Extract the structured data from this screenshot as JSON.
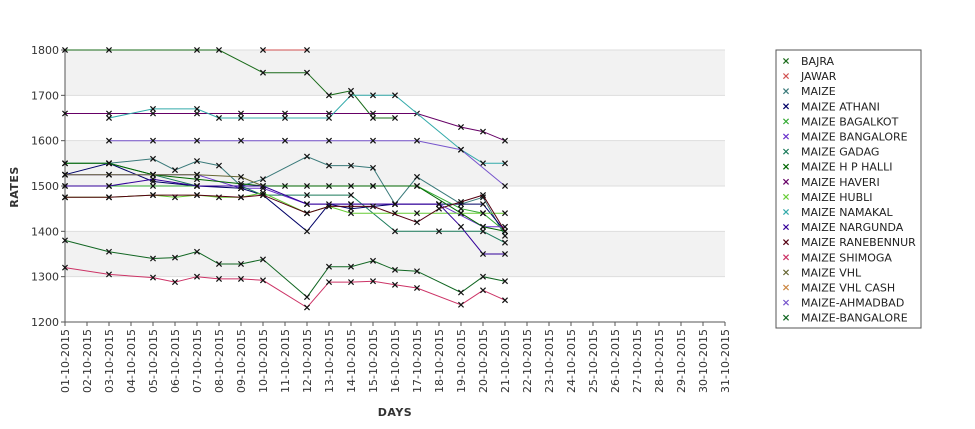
{
  "chart_data": {
    "type": "line",
    "xlabel": "DAYS",
    "ylabel": "RATES",
    "ylim": [
      1200,
      1800
    ],
    "yticks": [
      "1200",
      "1300",
      "1400",
      "1500",
      "1600",
      "1700",
      "1800"
    ],
    "grid": "horizontal alternating bands",
    "legend_position": "right",
    "categories": [
      "01-10-2015",
      "02-10-2015",
      "03-10-2015",
      "04-10-2015",
      "05-10-2015",
      "06-10-2015",
      "07-10-2015",
      "08-10-2015",
      "09-10-2015",
      "10-10-2015",
      "11-10-2015",
      "12-10-2015",
      "13-10-2015",
      "14-10-2015",
      "15-10-2015",
      "16-10-2015",
      "17-10-2015",
      "18-10-2015",
      "19-10-2015",
      "20-10-2015",
      "21-10-2015",
      "22-10-2015",
      "23-10-2015",
      "24-10-2015",
      "25-10-2015",
      "26-10-2015",
      "27-10-2015",
      "28-10-2015",
      "29-10-2015",
      "30-10-2015",
      "31-10-2015"
    ],
    "series": [
      {
        "name": "BAJRA",
        "color": "#1a6b1a",
        "points": [
          [
            0,
            1800
          ],
          [
            2,
            1800
          ],
          [
            6,
            1800
          ],
          [
            7,
            1800
          ],
          [
            9,
            1750
          ],
          [
            11,
            1750
          ],
          [
            12,
            1700
          ],
          [
            13,
            1710
          ],
          [
            14,
            1650
          ],
          [
            15,
            1650
          ]
        ]
      },
      {
        "name": "JAWAR",
        "color": "#d05050",
        "points": [
          [
            9,
            1800
          ],
          [
            11,
            1800
          ]
        ]
      },
      {
        "name": "MAIZE",
        "color": "#3a7a7a",
        "points": [
          [
            2,
            1550
          ],
          [
            4,
            1560
          ],
          [
            5,
            1535
          ],
          [
            6,
            1555
          ],
          [
            7,
            1545
          ],
          [
            8,
            1500
          ],
          [
            9,
            1515
          ],
          [
            11,
            1565
          ],
          [
            12,
            1545
          ],
          [
            13,
            1545
          ],
          [
            14,
            1540
          ],
          [
            15,
            1460
          ],
          [
            16,
            1520
          ],
          [
            18,
            1460
          ],
          [
            19,
            1475
          ],
          [
            20,
            1390
          ]
        ]
      },
      {
        "name": "MAIZE ATHANI",
        "color": "#000066",
        "points": [
          [
            0,
            1525
          ],
          [
            2,
            1550
          ],
          [
            4,
            1510
          ],
          [
            6,
            1500
          ],
          [
            8,
            1495
          ],
          [
            9,
            1480
          ],
          [
            11,
            1400
          ],
          [
            12,
            1460
          ],
          [
            13,
            1450
          ],
          [
            15,
            1460
          ],
          [
            17,
            1460
          ],
          [
            19,
            1460
          ],
          [
            20,
            1400
          ]
        ]
      },
      {
        "name": "MAIZE BAGALKOT",
        "color": "#33aa33",
        "points": [
          [
            0,
            1500
          ],
          [
            2,
            1500
          ],
          [
            4,
            1500
          ],
          [
            6,
            1500
          ],
          [
            8,
            1500
          ],
          [
            10,
            1500
          ],
          [
            12,
            1500
          ],
          [
            14,
            1500
          ],
          [
            16,
            1500
          ],
          [
            18,
            1450
          ],
          [
            19,
            1440
          ],
          [
            20,
            1400
          ]
        ]
      },
      {
        "name": "MAIZE BANGALORE",
        "color": "#6a33cc",
        "points": [
          [
            0,
            1525
          ],
          [
            2,
            1525
          ],
          [
            4,
            1525
          ],
          [
            6,
            1525
          ],
          [
            8,
            1495
          ],
          [
            9,
            1495
          ],
          [
            11,
            1460
          ],
          [
            13,
            1460
          ],
          [
            15,
            1460
          ],
          [
            17,
            1460
          ],
          [
            19,
            1410
          ],
          [
            20,
            1410
          ]
        ]
      },
      {
        "name": "MAIZE GADAG",
        "color": "#1a7a5a",
        "points": [
          [
            0,
            1550
          ],
          [
            2,
            1550
          ],
          [
            4,
            1525
          ],
          [
            6,
            1500
          ],
          [
            8,
            1500
          ],
          [
            9,
            1480
          ],
          [
            11,
            1480
          ],
          [
            13,
            1480
          ],
          [
            15,
            1400
          ],
          [
            17,
            1400
          ],
          [
            19,
            1400
          ],
          [
            20,
            1375
          ]
        ]
      },
      {
        "name": "MAIZE H P HALLI",
        "color": "#006600",
        "points": [
          [
            0,
            1550
          ],
          [
            2,
            1550
          ],
          [
            4,
            1525
          ],
          [
            6,
            1515
          ],
          [
            8,
            1505
          ],
          [
            9,
            1500
          ],
          [
            11,
            1500
          ],
          [
            13,
            1500
          ],
          [
            14,
            1500
          ],
          [
            16,
            1500
          ],
          [
            18,
            1440
          ],
          [
            19,
            1410
          ],
          [
            20,
            1400
          ]
        ]
      },
      {
        "name": "MAIZE HAVERI",
        "color": "#660066",
        "points": [
          [
            0,
            1660
          ],
          [
            2,
            1660
          ],
          [
            4,
            1660
          ],
          [
            6,
            1660
          ],
          [
            8,
            1660
          ],
          [
            10,
            1660
          ],
          [
            12,
            1660
          ],
          [
            14,
            1660
          ],
          [
            16,
            1660
          ],
          [
            18,
            1630
          ],
          [
            19,
            1620
          ],
          [
            20,
            1600
          ]
        ]
      },
      {
        "name": "MAIZE HUBLI",
        "color": "#66cc33",
        "points": [
          [
            0,
            1475
          ],
          [
            2,
            1475
          ],
          [
            4,
            1480
          ],
          [
            5,
            1475
          ],
          [
            6,
            1480
          ],
          [
            7,
            1475
          ],
          [
            8,
            1475
          ],
          [
            9,
            1485
          ],
          [
            11,
            1440
          ],
          [
            12,
            1455
          ],
          [
            13,
            1440
          ],
          [
            15,
            1440
          ],
          [
            16,
            1440
          ],
          [
            18,
            1440
          ],
          [
            19,
            1440
          ],
          [
            20,
            1440
          ]
        ]
      },
      {
        "name": "MAIZE NAMAKAL",
        "color": "#33aaaa",
        "points": [
          [
            2,
            1650
          ],
          [
            4,
            1670
          ],
          [
            6,
            1670
          ],
          [
            7,
            1650
          ],
          [
            8,
            1650
          ],
          [
            10,
            1650
          ],
          [
            12,
            1650
          ],
          [
            13,
            1700
          ],
          [
            14,
            1700
          ],
          [
            15,
            1700
          ],
          [
            18,
            1580
          ],
          [
            19,
            1550
          ],
          [
            20,
            1550
          ]
        ]
      },
      {
        "name": "MAIZE NARGUNDA",
        "color": "#330099",
        "points": [
          [
            0,
            1500
          ],
          [
            2,
            1500
          ],
          [
            4,
            1515
          ],
          [
            6,
            1500
          ],
          [
            8,
            1500
          ],
          [
            9,
            1500
          ],
          [
            11,
            1460
          ],
          [
            13,
            1460
          ],
          [
            15,
            1460
          ],
          [
            17,
            1460
          ],
          [
            18,
            1410
          ],
          [
            19,
            1350
          ],
          [
            20,
            1350
          ]
        ]
      },
      {
        "name": "MAIZE RANEBENNUR",
        "color": "#550011",
        "points": [
          [
            0,
            1475
          ],
          [
            2,
            1475
          ],
          [
            4,
            1480
          ],
          [
            6,
            1480
          ],
          [
            8,
            1475
          ],
          [
            9,
            1480
          ],
          [
            11,
            1440
          ],
          [
            12,
            1455
          ],
          [
            14,
            1455
          ],
          [
            16,
            1420
          ],
          [
            17,
            1450
          ],
          [
            18,
            1465
          ],
          [
            19,
            1480
          ],
          [
            20,
            1400
          ]
        ]
      },
      {
        "name": "MAIZE SHIMOGA",
        "color": "#cc3366",
        "points": [
          [
            0,
            1320
          ],
          [
            2,
            1305
          ],
          [
            4,
            1298
          ],
          [
            5,
            1288
          ],
          [
            6,
            1300
          ],
          [
            7,
            1295
          ],
          [
            8,
            1295
          ],
          [
            9,
            1292
          ],
          [
            11,
            1232
          ],
          [
            12,
            1288
          ],
          [
            13,
            1288
          ],
          [
            14,
            1290
          ],
          [
            15,
            1282
          ],
          [
            16,
            1275
          ],
          [
            18,
            1238
          ],
          [
            19,
            1270
          ],
          [
            20,
            1248
          ]
        ]
      },
      {
        "name": "MAIZE VHL",
        "color": "#666633",
        "points": [
          [
            0,
            1525
          ],
          [
            2,
            1525
          ],
          [
            4,
            1525
          ],
          [
            6,
            1525
          ],
          [
            8,
            1520
          ],
          [
            9,
            1500
          ]
        ]
      },
      {
        "name": "MAIZE VHL CASH",
        "color": "#cc8844",
        "points": []
      },
      {
        "name": "MAIZE-AHMADBAD",
        "color": "#7755cc",
        "points": [
          [
            2,
            1600
          ],
          [
            4,
            1600
          ],
          [
            6,
            1600
          ],
          [
            8,
            1600
          ],
          [
            10,
            1600
          ],
          [
            12,
            1600
          ],
          [
            14,
            1600
          ],
          [
            16,
            1600
          ],
          [
            18,
            1580
          ],
          [
            20,
            1500
          ]
        ]
      },
      {
        "name": "MAIZE-BANGALORE",
        "color": "#116622",
        "points": [
          [
            0,
            1380
          ],
          [
            2,
            1355
          ],
          [
            4,
            1340
          ],
          [
            5,
            1342
          ],
          [
            6,
            1355
          ],
          [
            7,
            1328
          ],
          [
            8,
            1328
          ],
          [
            9,
            1338
          ],
          [
            11,
            1255
          ],
          [
            12,
            1322
          ],
          [
            13,
            1322
          ],
          [
            14,
            1335
          ],
          [
            15,
            1315
          ],
          [
            16,
            1312
          ],
          [
            18,
            1265
          ],
          [
            19,
            1300
          ],
          [
            20,
            1290
          ]
        ]
      }
    ]
  }
}
